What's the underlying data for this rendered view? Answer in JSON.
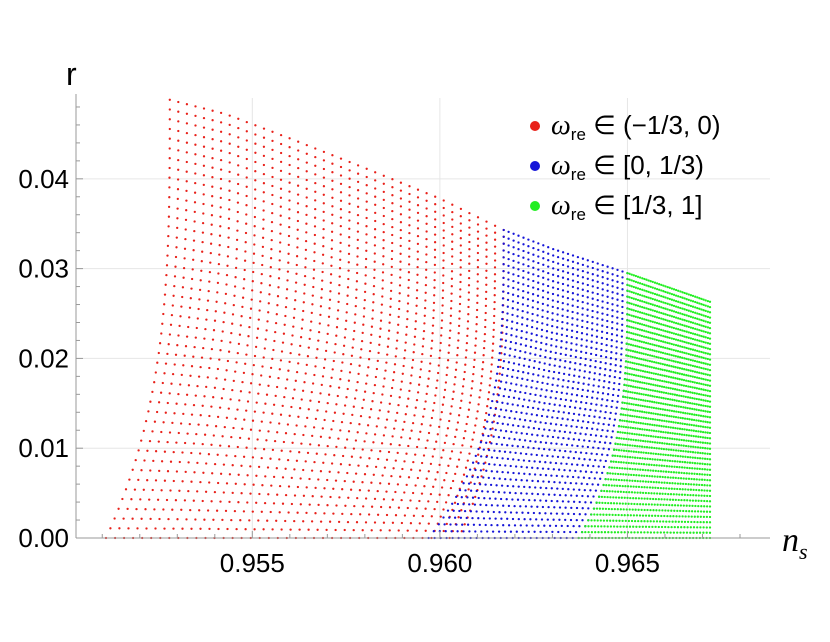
{
  "chart_data": {
    "type": "scatter",
    "xlabel": "n",
    "xlabel_sub": "s",
    "ylabel": "r",
    "xlim": [
      0.9503,
      0.9688
    ],
    "ylim": [
      0.0,
      0.049
    ],
    "x_ticks": [
      0.955,
      0.96,
      0.965
    ],
    "x_tick_labels": [
      "0.955",
      "0.960",
      "0.965"
    ],
    "y_ticks": [
      0.0,
      0.01,
      0.02,
      0.03,
      0.04
    ],
    "y_tick_labels": [
      "0.00",
      "0.01",
      "0.02",
      "0.03",
      "0.04"
    ],
    "grid": true,
    "legend_position": "top-right",
    "legend": [
      {
        "symbol": "ω",
        "sub": "re",
        "text": " ∈ (−1/3, 0)",
        "color": "#e8211a"
      },
      {
        "symbol": "ω",
        "sub": "re",
        "text": " ∈ [0, 1/3)",
        "color": "#1515d8"
      },
      {
        "symbol": "ω",
        "sub": "re",
        "text": " ∈ [1/3, 1]",
        "color": "#22ee22"
      }
    ],
    "colors": {
      "red": "#e8211a",
      "blue": "#1515d8",
      "green": "#22ee22"
    },
    "top_envelope": [
      [
        0.9528,
        0.0488
      ],
      [
        0.9543,
        0.0472
      ],
      [
        0.956,
        0.0445
      ],
      [
        0.958,
        0.0412
      ],
      [
        0.96,
        0.0378
      ],
      [
        0.9617,
        0.0343
      ],
      [
        0.963,
        0.0322
      ],
      [
        0.965,
        0.0295
      ],
      [
        0.9672,
        0.0263
      ]
    ],
    "bottom_edge_x": [
      0.9511,
      0.9672
    ],
    "series": [
      {
        "name": "ω_re ∈ (−1/3, 0)",
        "color": "#e8211a",
        "line_top_x": [
          0.9528,
          0.9617
        ],
        "line_bottom_x": [
          0.9511,
          0.9605
        ],
        "line_count": 40,
        "points_per_line": 46
      },
      {
        "name": "ω_re ∈ [0, 1/3)",
        "color": "#1515d8",
        "x_range": [
          0.9605,
          0.965
        ],
        "line_count": 26,
        "points_per_line": 46
      },
      {
        "name": "ω_re ∈ [1/3, 1]",
        "color": "#22ee22",
        "x_range": [
          0.9637,
          0.9672
        ],
        "line_count": 40,
        "points_per_line": 46
      }
    ]
  }
}
